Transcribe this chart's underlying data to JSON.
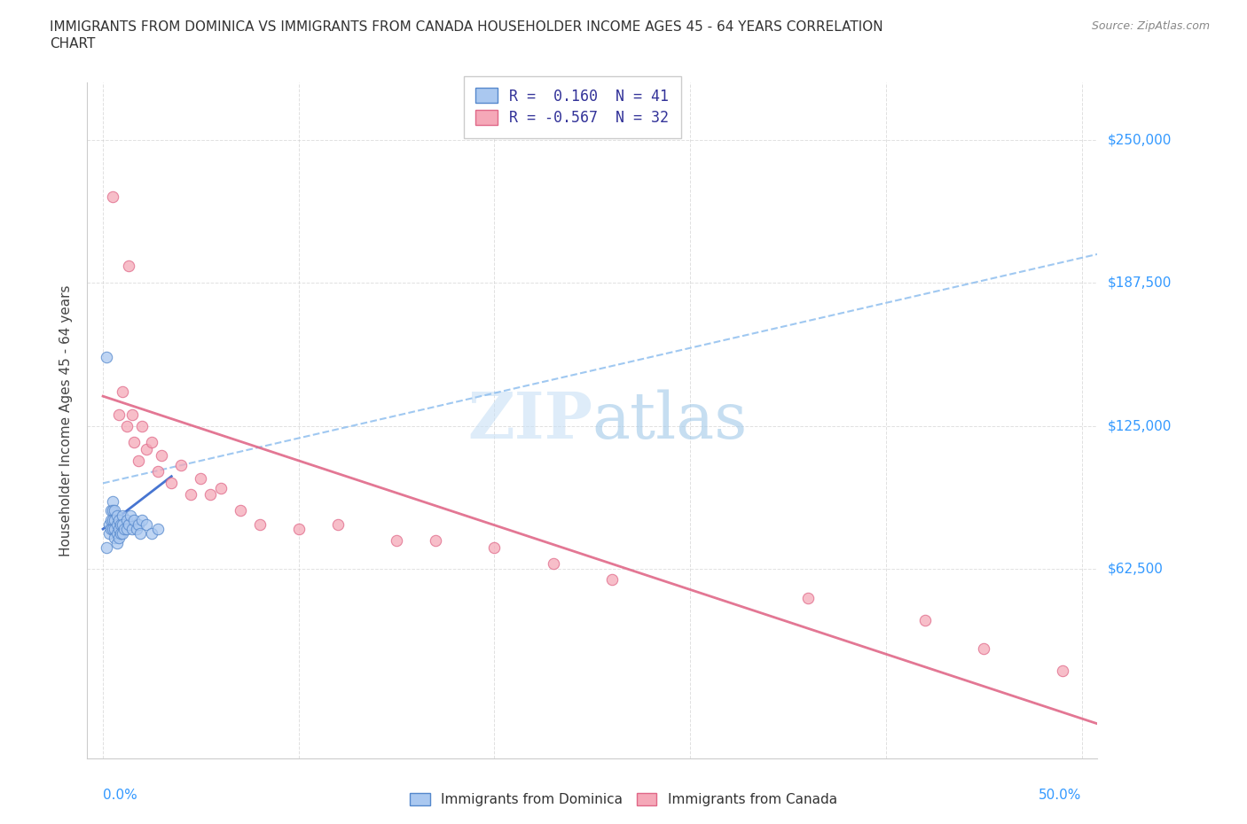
{
  "title_line1": "IMMIGRANTS FROM DOMINICA VS IMMIGRANTS FROM CANADA HOUSEHOLDER INCOME AGES 45 - 64 YEARS CORRELATION",
  "title_line2": "CHART",
  "source_text": "Source: ZipAtlas.com",
  "ylabel": "Householder Income Ages 45 - 64 years",
  "ytick_labels": [
    "$62,500",
    "$125,000",
    "$187,500",
    "$250,000"
  ],
  "ytick_values": [
    62500,
    125000,
    187500,
    250000
  ],
  "xlim": [
    -0.008,
    0.508
  ],
  "ylim": [
    -20000,
    275000
  ],
  "dominica_color": "#aac8f0",
  "canada_color": "#f5a8b8",
  "dominica_edge": "#5588cc",
  "canada_edge": "#e06888",
  "trendline_blue_solid_color": "#3366cc",
  "trendline_blue_dash_color": "#88bbee",
  "trendline_pink_color": "#e06888",
  "dominica_x": [
    0.002,
    0.003,
    0.003,
    0.004,
    0.004,
    0.004,
    0.005,
    0.005,
    0.005,
    0.005,
    0.006,
    0.006,
    0.006,
    0.006,
    0.007,
    0.007,
    0.007,
    0.007,
    0.008,
    0.008,
    0.008,
    0.009,
    0.009,
    0.01,
    0.01,
    0.01,
    0.011,
    0.012,
    0.012,
    0.013,
    0.014,
    0.015,
    0.016,
    0.017,
    0.018,
    0.019,
    0.02,
    0.022,
    0.025,
    0.028,
    0.002
  ],
  "dominica_y": [
    155000,
    82000,
    78000,
    88000,
    84000,
    80000,
    92000,
    88000,
    84000,
    80000,
    88000,
    84000,
    80000,
    76000,
    86000,
    82000,
    78000,
    74000,
    84000,
    80000,
    76000,
    82000,
    78000,
    86000,
    82000,
    78000,
    80000,
    84000,
    80000,
    82000,
    86000,
    80000,
    84000,
    80000,
    82000,
    78000,
    84000,
    82000,
    78000,
    80000,
    72000
  ],
  "canada_x": [
    0.005,
    0.008,
    0.01,
    0.012,
    0.013,
    0.015,
    0.016,
    0.018,
    0.02,
    0.022,
    0.025,
    0.028,
    0.03,
    0.035,
    0.04,
    0.045,
    0.05,
    0.055,
    0.06,
    0.07,
    0.08,
    0.1,
    0.12,
    0.15,
    0.17,
    0.2,
    0.23,
    0.26,
    0.36,
    0.42,
    0.45,
    0.49
  ],
  "canada_y": [
    225000,
    130000,
    140000,
    125000,
    195000,
    130000,
    118000,
    110000,
    125000,
    115000,
    118000,
    105000,
    112000,
    100000,
    108000,
    95000,
    102000,
    95000,
    98000,
    88000,
    82000,
    80000,
    82000,
    75000,
    75000,
    72000,
    65000,
    58000,
    50000,
    40000,
    28000,
    18000
  ],
  "blue_solid_trendline_x": [
    0.0,
    0.035
  ],
  "blue_solid_trendline_y": [
    80000,
    103000
  ],
  "blue_dash_trendline_x": [
    0.0,
    0.508
  ],
  "blue_dash_trendline_y": [
    100000,
    200000
  ],
  "pink_trendline_x": [
    0.0,
    0.508
  ],
  "pink_trendline_y": [
    138000,
    -5000
  ],
  "bg_color": "#ffffff",
  "grid_color": "#cccccc"
}
